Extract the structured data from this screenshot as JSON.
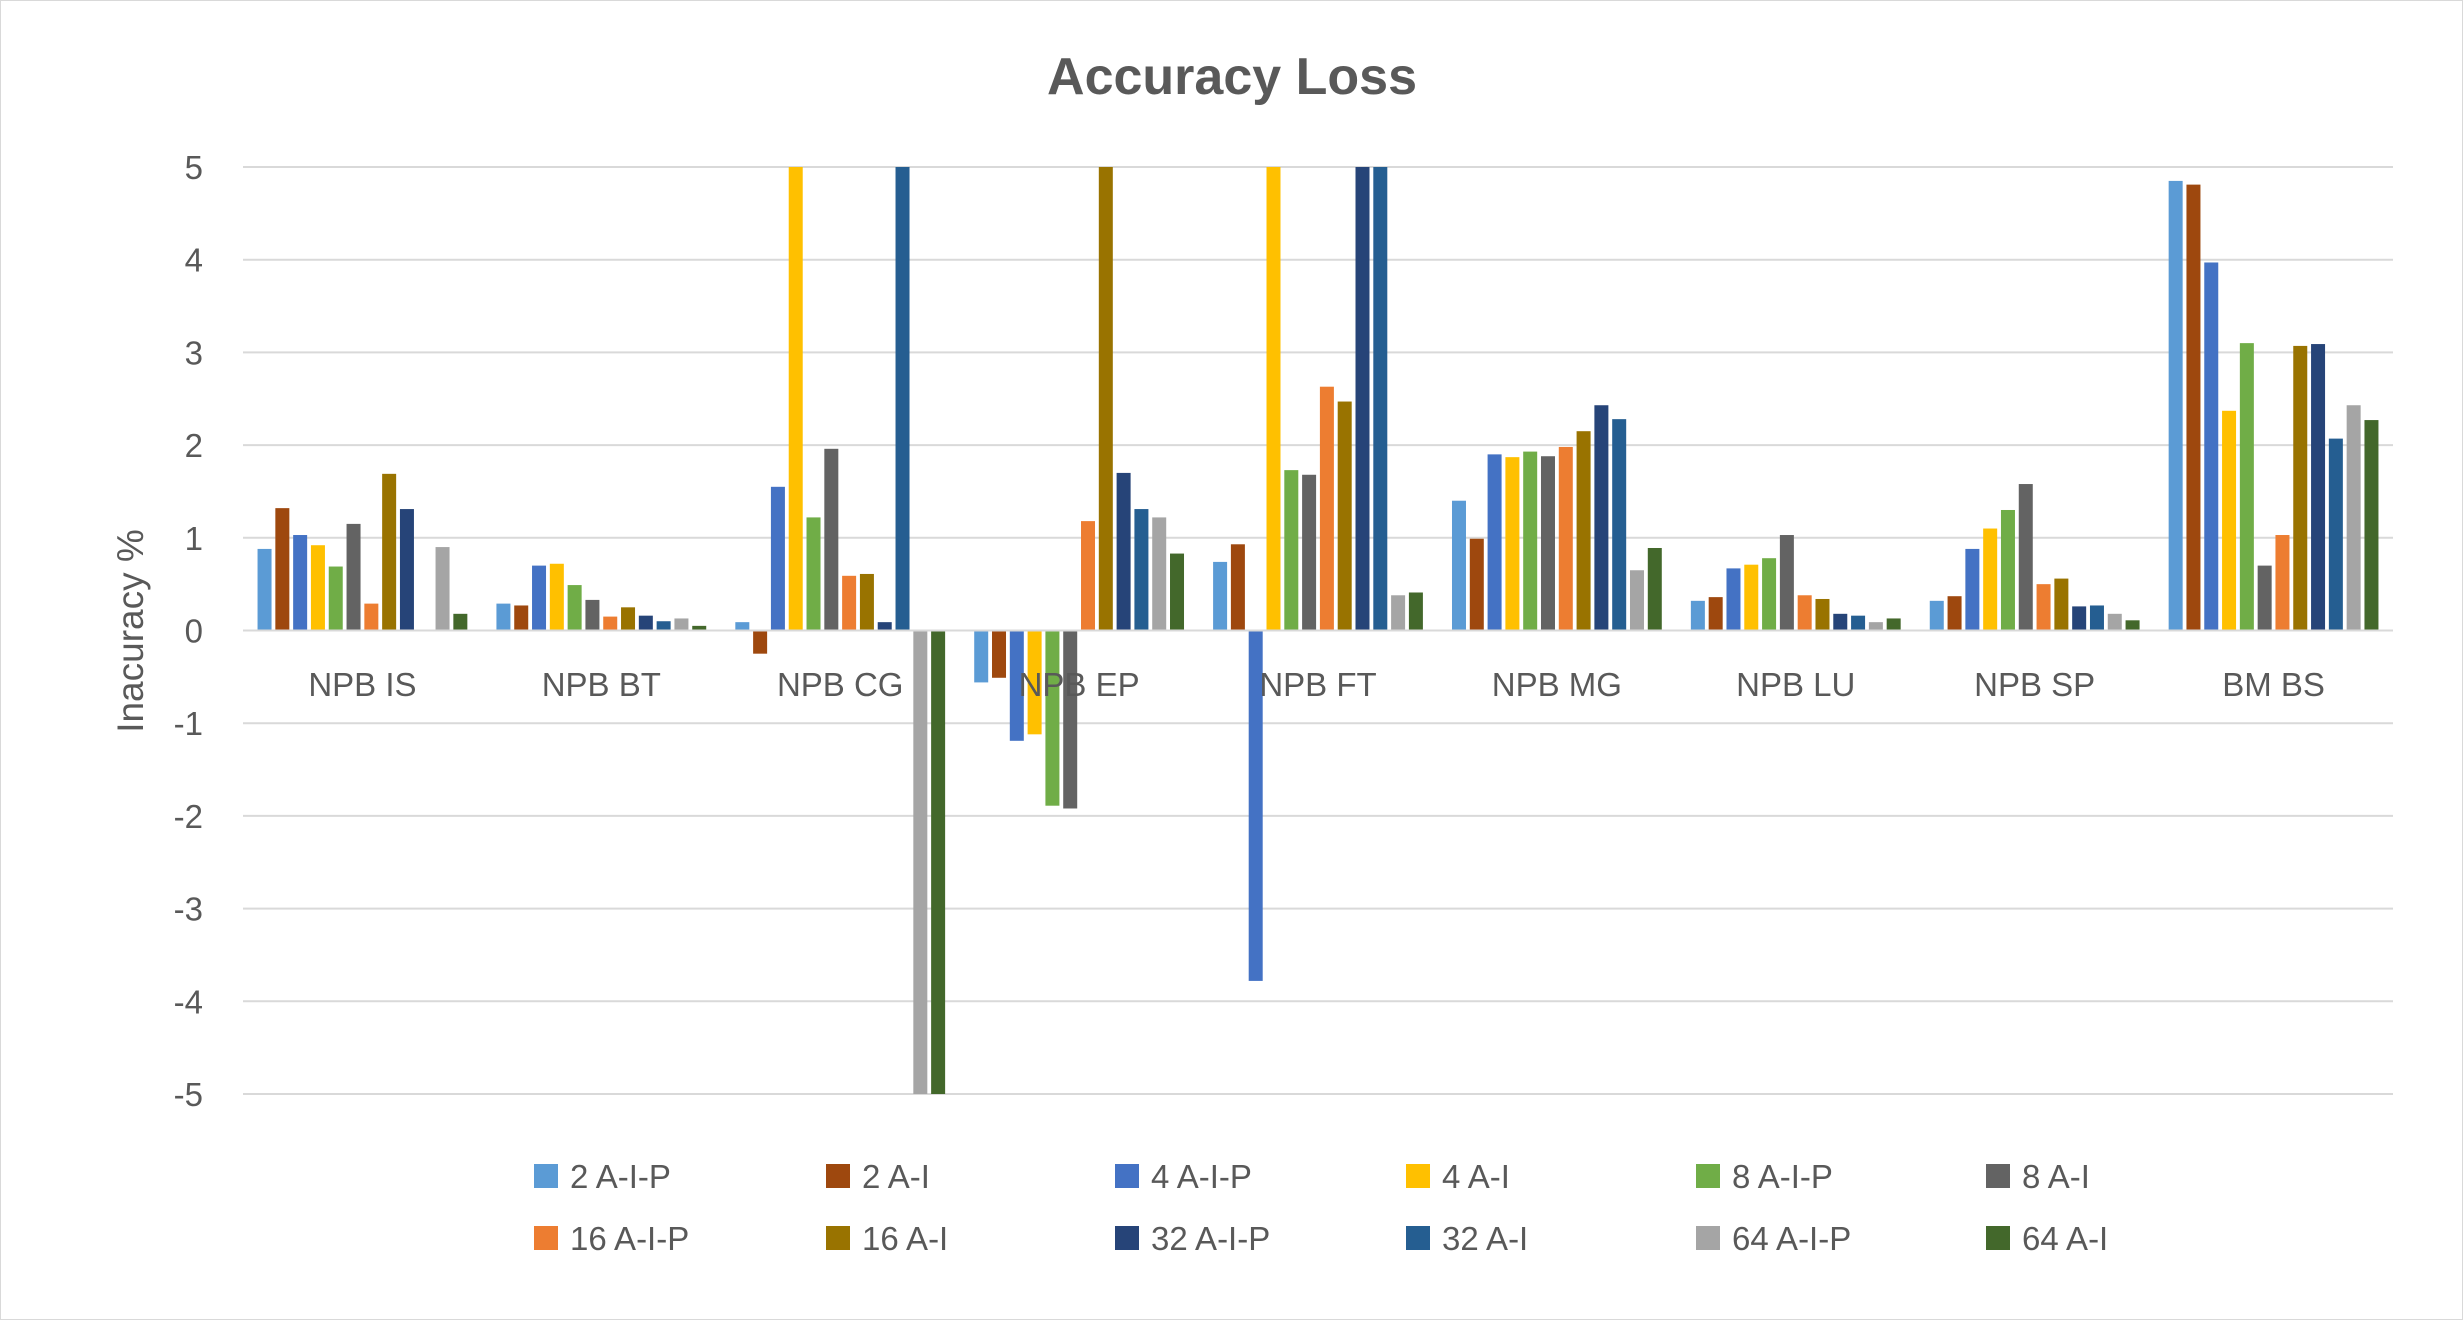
{
  "chart_data": {
    "type": "bar",
    "title": "Accuracy Loss",
    "xlabel": "",
    "ylabel": "Inacuracy %",
    "ylim": [
      -5,
      5
    ],
    "yticks": [
      5,
      4,
      3,
      2,
      1,
      0,
      -1,
      -2,
      -3,
      -4,
      -5
    ],
    "grid": true,
    "legend_position": "bottom",
    "categories": [
      "NPB IS",
      "NPB BT",
      "NPB CG",
      "NPB EP",
      "NPB FT",
      "NPB MG",
      "NPB LU",
      "NPB SP",
      "BM BS"
    ],
    "series": [
      {
        "name": "2 A-I-P",
        "color": "#5b9bd5",
        "values": [
          0.88,
          0.29,
          0.09,
          -0.56,
          0.74,
          1.4,
          0.32,
          0.32,
          4.85
        ]
      },
      {
        "name": "2 A-I",
        "color": "#9e480e",
        "values": [
          1.32,
          0.27,
          -0.25,
          -0.51,
          0.93,
          0.99,
          0.36,
          0.37,
          4.81
        ]
      },
      {
        "name": "4 A-I-P",
        "color": "#4472c4",
        "values": [
          1.03,
          0.7,
          1.55,
          -1.19,
          -3.78,
          1.9,
          0.67,
          0.88,
          3.97
        ]
      },
      {
        "name": "4 A-I",
        "color": "#ffc000",
        "values": [
          0.92,
          0.72,
          5.0,
          -1.12,
          5.0,
          1.87,
          0.71,
          1.1,
          2.37
        ]
      },
      {
        "name": "8 A-I-P",
        "color": "#70ad47",
        "values": [
          0.69,
          0.49,
          1.22,
          -1.89,
          1.73,
          1.93,
          0.78,
          1.3,
          3.1
        ]
      },
      {
        "name": "8 A-I",
        "color": "#636363",
        "values": [
          1.15,
          0.33,
          1.96,
          -1.92,
          1.68,
          1.88,
          1.03,
          1.58,
          0.7
        ]
      },
      {
        "name": "16 A-I-P",
        "color": "#ed7d31",
        "values": [
          0.29,
          0.15,
          0.59,
          1.18,
          2.63,
          1.98,
          0.38,
          0.5,
          1.03
        ]
      },
      {
        "name": "16 A-I",
        "color": "#997300",
        "values": [
          1.69,
          0.25,
          0.61,
          5.0,
          2.47,
          2.15,
          0.34,
          0.56,
          3.07
        ]
      },
      {
        "name": "32 A-I-P",
        "color": "#264478",
        "values": [
          1.31,
          0.16,
          0.09,
          1.7,
          5.0,
          2.43,
          0.18,
          0.26,
          3.09
        ]
      },
      {
        "name": "32 A-I",
        "color": "#255e91",
        "values": [
          0.0,
          0.1,
          5.0,
          1.31,
          5.0,
          2.28,
          0.16,
          0.27,
          2.07
        ]
      },
      {
        "name": "64 A-I-P",
        "color": "#a5a5a5",
        "values": [
          0.9,
          0.13,
          -5.0,
          1.22,
          0.38,
          0.65,
          0.09,
          0.18,
          2.43
        ]
      },
      {
        "name": "64 A-I",
        "color": "#43682b",
        "values": [
          0.18,
          0.05,
          -5.0,
          0.83,
          0.41,
          0.89,
          0.13,
          0.11,
          2.27
        ]
      }
    ]
  }
}
